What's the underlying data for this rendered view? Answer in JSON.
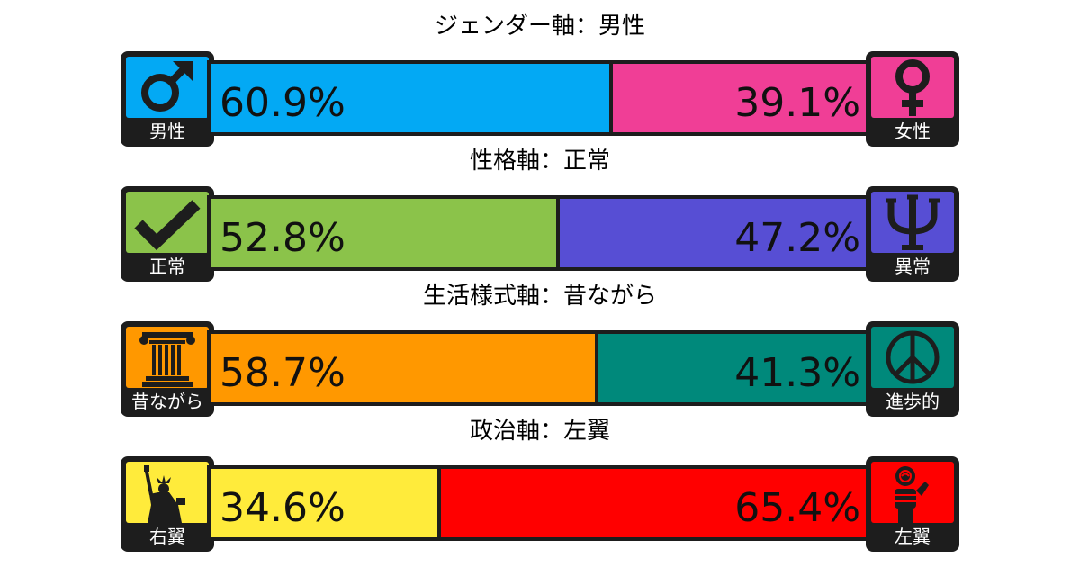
{
  "chart_data": {
    "type": "bar",
    "orientation": "horizontal-stacked",
    "xlim": [
      0,
      100
    ],
    "axes": [
      {
        "title": "ジェンダー軸：男性",
        "left": {
          "label": "男性",
          "value": 60.9,
          "text": "60.9%",
          "color": "#03a9f4",
          "icon": "male-symbol-icon"
        },
        "right": {
          "label": "女性",
          "value": 39.1,
          "text": "39.1%",
          "color": "#f03e96",
          "icon": "female-symbol-icon"
        }
      },
      {
        "title": "性格軸：正常",
        "left": {
          "label": "正常",
          "value": 52.8,
          "text": "52.8%",
          "color": "#8bc34a",
          "icon": "checkmark-icon"
        },
        "right": {
          "label": "異常",
          "value": 47.2,
          "text": "47.2%",
          "color": "#574ed4",
          "icon": "psi-icon"
        }
      },
      {
        "title": "生活様式軸：昔ながら",
        "left": {
          "label": "昔ながら",
          "value": 58.7,
          "text": "58.7%",
          "color": "#ff9800",
          "icon": "column-icon"
        },
        "right": {
          "label": "進歩的",
          "value": 41.3,
          "text": "41.3%",
          "color": "#00897b",
          "icon": "peace-icon"
        }
      },
      {
        "title": "政治軸：左翼",
        "left": {
          "label": "右翼",
          "value": 34.6,
          "text": "34.6%",
          "color": "#ffeb3b",
          "icon": "statue-of-liberty-icon"
        },
        "right": {
          "label": "左翼",
          "value": 65.4,
          "text": "65.4%",
          "color": "#ff0000",
          "icon": "fist-and-rose-icon"
        }
      }
    ]
  }
}
